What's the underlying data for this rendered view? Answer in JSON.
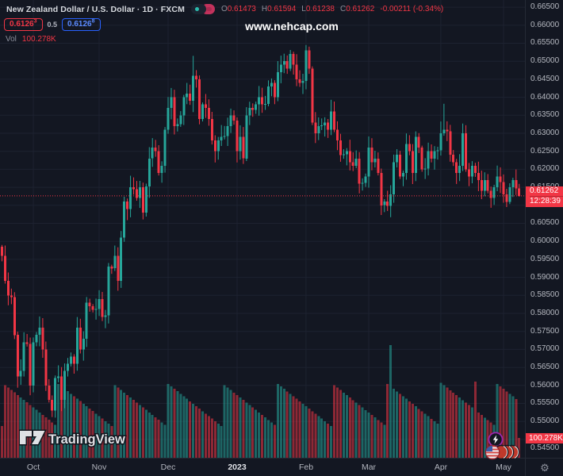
{
  "colors": {
    "background": "#131722",
    "grid": "#1d2230",
    "up": "#26a69a",
    "down": "#f23645",
    "axis_text": "#b6b9c1",
    "accent_blue": "#2962ff",
    "badge_red": "#f23645",
    "event_purple": "#9c27b0"
  },
  "header": {
    "symbol_title": "New Zealand Dollar / U.S. Dollar · 1D · FXCM",
    "ohlc": {
      "o_label": "O",
      "o": "0.61473",
      "h_label": "H",
      "h": "0.61594",
      "l_label": "L",
      "l": "0.61238",
      "c_label": "C",
      "c": "0.61262",
      "change": "-0.00211 (-0.34%)"
    },
    "bid": {
      "main": "0.6126",
      "sup": "3"
    },
    "spread": "0.5",
    "ask": {
      "main": "0.6126",
      "sup": "8"
    },
    "vol_label": "Vol",
    "vol_value": "100.278K",
    "watermark": "www.nehcap.com"
  },
  "price_axis": {
    "badge_price": "0.61262",
    "badge_countdown": "12:28:39",
    "volume_badge": "100.278K"
  },
  "time_axis": {
    "months": [
      {
        "label": "Oct",
        "index": 10
      },
      {
        "label": "Nov",
        "index": 31
      },
      {
        "label": "Dec",
        "index": 53
      },
      {
        "label": "2023",
        "index": 75,
        "emphasis": true
      },
      {
        "label": "Feb",
        "index": 97
      },
      {
        "label": "Mar",
        "index": 117
      },
      {
        "label": "Apr",
        "index": 140
      },
      {
        "label": "May",
        "index": 160
      }
    ]
  },
  "branding": {
    "logo_text": "TradingView"
  },
  "chart_data": {
    "type": "candlestick",
    "title": "New Zealand Dollar / U.S. Dollar",
    "timeframe": "1D",
    "exchange": "FXCM",
    "x_range": {
      "start": "2022-09-19",
      "end": "2023-05-08",
      "points": 166
    },
    "y_axis": {
      "min": 0.545,
      "max": 0.665,
      "tick_step": 0.005,
      "decimals": 5,
      "hidden_tick": 0.61
    },
    "current_price": 0.61262,
    "countdown": "12:28:39",
    "last": {
      "open": 0.61473,
      "high": 0.61594,
      "low": 0.61238,
      "close": 0.61262,
      "change": -0.00211,
      "change_pct": -0.34
    },
    "first_open": 0.5985,
    "closes": [
      0.596,
      0.589,
      0.585,
      0.5845,
      0.574,
      0.5625,
      0.564,
      0.572,
      0.5715,
      0.56,
      0.572,
      0.574,
      0.576,
      0.57,
      0.56,
      0.556,
      0.553,
      0.562,
      0.5625,
      0.556,
      0.564,
      0.566,
      0.568,
      0.566,
      0.576,
      0.57,
      0.573,
      0.583,
      0.582,
      0.581,
      0.5812,
      0.584,
      0.579,
      0.5795,
      0.593,
      0.5925,
      0.596,
      0.589,
      0.601,
      0.611,
      0.609,
      0.615,
      0.6145,
      0.612,
      0.615,
      0.608,
      0.6152,
      0.623,
      0.626,
      0.625,
      0.619,
      0.621,
      0.631,
      0.637,
      0.64,
      0.632,
      0.6325,
      0.635,
      0.64,
      0.641,
      0.639,
      0.646,
      0.645,
      0.634,
      0.638,
      0.637,
      0.634,
      0.628,
      0.625,
      0.628,
      0.629,
      0.6292,
      0.632,
      0.635,
      0.6335,
      0.625,
      0.629,
      0.623,
      0.635,
      0.637,
      0.6365,
      0.638,
      0.64,
      0.638,
      0.6382,
      0.643,
      0.644,
      0.64,
      0.647,
      0.649,
      0.65,
      0.648,
      0.652,
      0.649,
      0.645,
      0.644,
      0.6445,
      0.653,
      0.648,
      0.633,
      0.63,
      0.632,
      0.6322,
      0.633,
      0.631,
      0.636,
      0.631,
      0.628,
      0.624,
      0.6242,
      0.625,
      0.622,
      0.621,
      0.623,
      0.616,
      0.6162,
      0.618,
      0.626,
      0.622,
      0.623,
      0.619,
      0.61,
      0.611,
      0.6098,
      0.613,
      0.622,
      0.624,
      0.618,
      0.619,
      0.627,
      0.625,
      0.619,
      0.629,
      0.626,
      0.62,
      0.6202,
      0.625,
      0.623,
      0.625,
      0.6253,
      0.63,
      0.631,
      0.6305,
      0.624,
      0.622,
      0.619,
      0.621,
      0.63,
      0.62,
      0.618,
      0.621,
      0.619,
      0.617,
      0.614,
      0.617,
      0.614,
      0.612,
      0.615,
      0.618,
      0.6165,
      0.613,
      0.611,
      0.615,
      0.617,
      0.61473,
      0.61262
    ],
    "wick_overrides": {
      "16": {
        "low": 0.5512
      },
      "61": {
        "high": 0.6515
      },
      "97": {
        "high": 0.6545
      },
      "123": {
        "low": 0.6084
      },
      "141": {
        "high": 0.6382
      }
    },
    "volume": {
      "unit": "K",
      "last": 100.278,
      "scale_max": 570,
      "base": 160,
      "spread": 220,
      "spikes": {
        "124": 570,
        "151": 385,
        "165": 100.278
      }
    }
  }
}
